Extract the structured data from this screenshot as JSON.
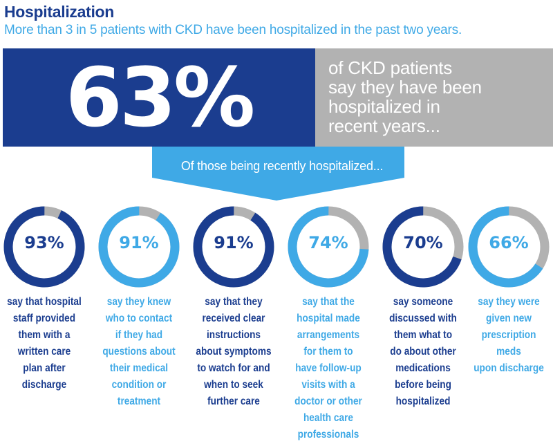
{
  "header": {
    "title": "Hospitalization",
    "subtitle": "More than 3 in 5 patients with CKD have been hospitalized in the past two years."
  },
  "headline": {
    "value": "63%",
    "text_lines": [
      "of CKD patients",
      "say they have been",
      "hospitalized in",
      "recent years..."
    ]
  },
  "banner": {
    "text": "Of those being recently hospitalized..."
  },
  "colors": {
    "dark_blue": "#1b3d8f",
    "light_blue": "#3fa9e6",
    "grey": "#b2b2b2"
  },
  "stats": [
    {
      "percent": 93,
      "label": "93%",
      "tone": "dark",
      "lines": [
        "say that hospital",
        "staff provided",
        "them with a",
        "written care",
        "plan after",
        "discharge"
      ]
    },
    {
      "percent": 91,
      "label": "91%",
      "tone": "light",
      "lines": [
        "say they knew",
        "who to contact",
        "if they had",
        "questions about",
        "their medical",
        "condition or",
        "treatment"
      ]
    },
    {
      "percent": 91,
      "label": "91%",
      "tone": "dark",
      "lines": [
        "say that they",
        "received clear",
        "instructions",
        "about symptoms",
        "to watch for and",
        "when to seek",
        "further care"
      ]
    },
    {
      "percent": 74,
      "label": "74%",
      "tone": "light",
      "lines": [
        "say that the",
        "hospital made",
        "arrangements",
        "for them to",
        "have follow-up",
        "visits with a",
        "doctor or other",
        "health care",
        "professionals"
      ]
    },
    {
      "percent": 70,
      "label": "70%",
      "tone": "dark",
      "lines": [
        "say someone",
        "discussed with",
        "them what to",
        "do about other",
        "medications",
        "before being",
        "hospitalized"
      ]
    },
    {
      "percent": 66,
      "label": "66%",
      "tone": "light",
      "lines": [
        "say they were",
        "given new",
        "prescription",
        "meds",
        "upon discharge"
      ]
    }
  ]
}
